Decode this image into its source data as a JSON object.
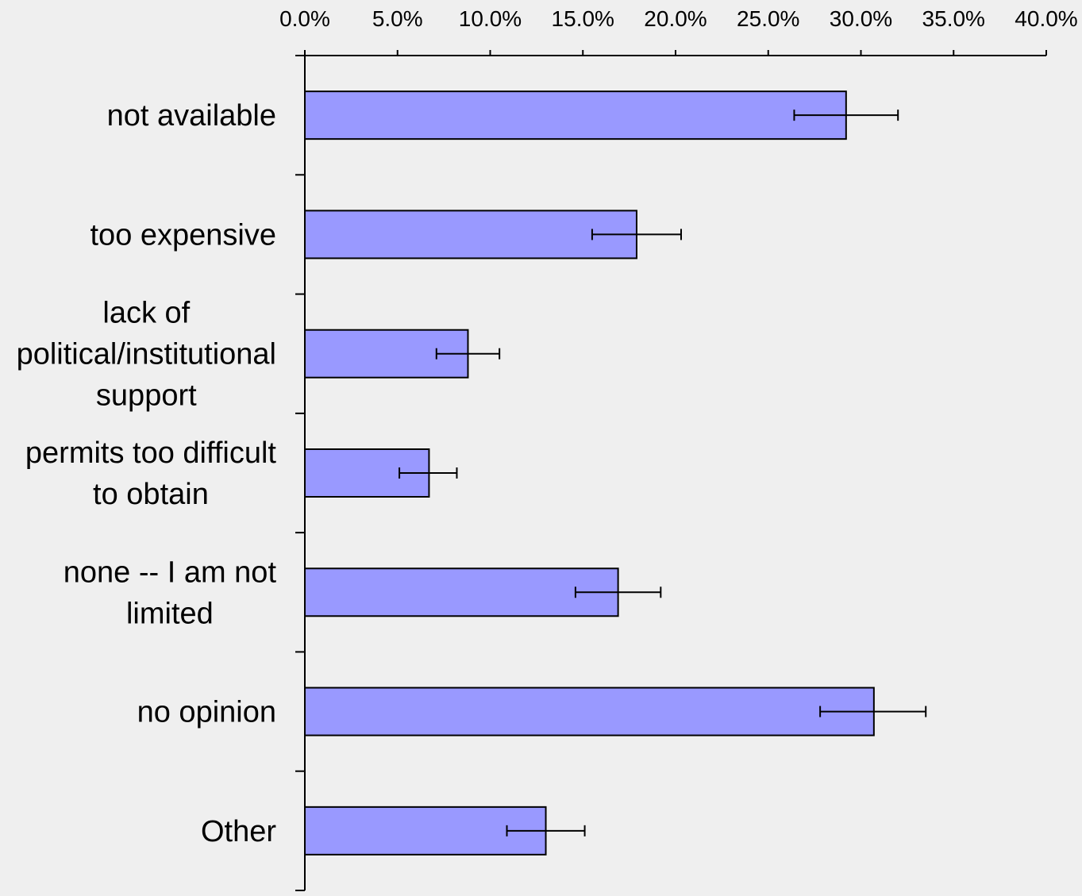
{
  "chart_data": {
    "type": "bar",
    "orientation": "horizontal",
    "categories": [
      [
        "not available"
      ],
      [
        "too expensive"
      ],
      [
        "lack of",
        "political/institutional",
        "support"
      ],
      [
        "permits too difficult",
        "to obtain"
      ],
      [
        "none -- I am not",
        "limited"
      ],
      [
        "no opinion"
      ],
      [
        "Other"
      ]
    ],
    "values": [
      29.2,
      17.9,
      8.8,
      6.7,
      16.9,
      30.7,
      13.0
    ],
    "error_low": [
      26.4,
      15.5,
      7.1,
      5.1,
      14.6,
      27.8,
      10.9
    ],
    "error_high": [
      32.0,
      20.3,
      10.5,
      8.2,
      19.2,
      33.5,
      15.1
    ],
    "xlim": [
      0,
      40
    ],
    "xticks": [
      0,
      5,
      10,
      15,
      20,
      25,
      30,
      35,
      40
    ],
    "xtick_labels": [
      "0.0%",
      "5.0%",
      "10.0%",
      "15.0%",
      "20.0%",
      "25.0%",
      "30.0%",
      "35.0%",
      "40.0%"
    ],
    "x_axis_position": "top",
    "grid": false,
    "bar_color": "#9999ff",
    "background_color": "#efefef",
    "title": "",
    "xlabel": "",
    "ylabel": ""
  }
}
